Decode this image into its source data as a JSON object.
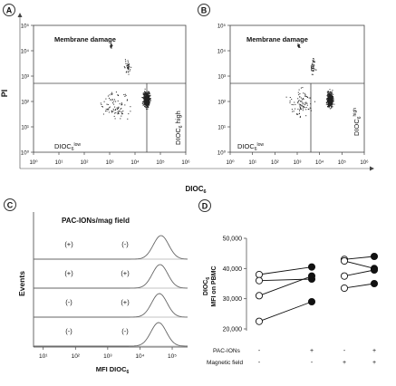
{
  "panels": {
    "A": {
      "label": "A",
      "title": "Membrane damage",
      "ylabel": "PI",
      "yticks": [
        "10⁰",
        "10¹",
        "10²",
        "10³",
        "10⁴",
        "10⁵"
      ],
      "xticks": [
        "10⁰",
        "10¹",
        "10²",
        "10³",
        "10⁴",
        "10⁵",
        "10⁶"
      ],
      "low_label": "DIOC",
      "low_sub": "6",
      "low_sup": "low",
      "high_label": "DIOC",
      "high_sub": "6",
      "high_tail": " high"
    },
    "B": {
      "label": "B",
      "title": "Membrane damage",
      "yticks": [
        "10⁰",
        "10¹",
        "10²",
        "10³",
        "10⁴",
        "10⁵"
      ],
      "xticks": [
        "10⁰",
        "10¹",
        "10²",
        "10³",
        "10⁴",
        "10⁵",
        "10⁶"
      ],
      "low_label": "DIOC",
      "low_sub": "6",
      "low_sup": "low",
      "high_label": "DIOC",
      "high_sub": "6",
      "high_sup": "high"
    },
    "xaxis_shared": {
      "label": "DIOC",
      "sub": "6"
    },
    "C": {
      "label": "C",
      "header": "PAC-IONs/mag field",
      "ylabel": "Events",
      "rows": [
        {
          "pac": "(+)",
          "mag": "(-)"
        },
        {
          "pac": "(+)",
          "mag": "(+)"
        },
        {
          "pac": "(-)",
          "mag": "(+)"
        },
        {
          "pac": "(-)",
          "mag": "(-)"
        }
      ],
      "xticks": [
        "10¹",
        "10²",
        "10³",
        "10⁴",
        "10⁵"
      ],
      "xlabel": "MFI DIOC",
      "xlabel_sub": "6"
    },
    "D": {
      "label": "D"
    }
  },
  "chart_data": [
    {
      "type": "scatter",
      "title": "Membrane damage",
      "ylabel": "PI",
      "xlabel": "DIOC6",
      "xscale": "log",
      "yscale": "log",
      "xlim": [
        1,
        1000000
      ],
      "ylim": [
        1,
        100000
      ],
      "gates": {
        "x": 10000,
        "y": 1000
      },
      "populations": [
        "DIOC6 low",
        "DIOC6 high",
        "Membrane damage"
      ]
    },
    {
      "type": "scatter",
      "title": "Membrane damage",
      "xlabel": "DIOC6",
      "xscale": "log",
      "yscale": "log",
      "xlim": [
        1,
        1000000
      ],
      "ylim": [
        1,
        100000
      ],
      "gates": {
        "x": 10000,
        "y": 1000
      },
      "populations": [
        "DIOC6 low",
        "DIOC6 high",
        "Membrane damage"
      ]
    },
    {
      "type": "area",
      "title": "PAC-IONs/mag field",
      "ylabel": "Events",
      "xlabel": "MFI DIOC6",
      "xscale": "log",
      "xlim": [
        5,
        300000
      ],
      "series": [
        {
          "name": "(+) (-)",
          "peak_x": 45000
        },
        {
          "name": "(+) (+)",
          "peak_x": 42000
        },
        {
          "name": "(-) (+)",
          "peak_x": 40000
        },
        {
          "name": "(-) (-)",
          "peak_x": 38000
        }
      ]
    },
    {
      "type": "line",
      "ylabel": "DIOC6 MFI on PBMC",
      "ylim": [
        20000,
        50000
      ],
      "yticks": [
        "20,000",
        "30,000",
        "40,000",
        "50,000"
      ],
      "row_labels": [
        "PAC-IONs",
        "Magnetic field"
      ],
      "groups": [
        {
          "pac": "-",
          "mag": "-"
        },
        {
          "pac": "+",
          "mag": "-"
        },
        {
          "pac": "-",
          "mag": "+"
        },
        {
          "pac": "+",
          "mag": "+"
        }
      ],
      "pairs_no_field": [
        {
          "untreated": 38000,
          "treated": 40500
        },
        {
          "untreated": 36000,
          "treated": 36500
        },
        {
          "untreated": 31000,
          "treated": 37500
        },
        {
          "untreated": 22500,
          "treated": 29000
        }
      ],
      "pairs_field": [
        {
          "untreated": 43000,
          "treated": 44000
        },
        {
          "untreated": 42500,
          "treated": 40000
        },
        {
          "untreated": 37500,
          "treated": 39500
        },
        {
          "untreated": 33500,
          "treated": 35000
        }
      ],
      "marker_untreated": "open-circle",
      "marker_treated": "filled-circle"
    }
  ]
}
